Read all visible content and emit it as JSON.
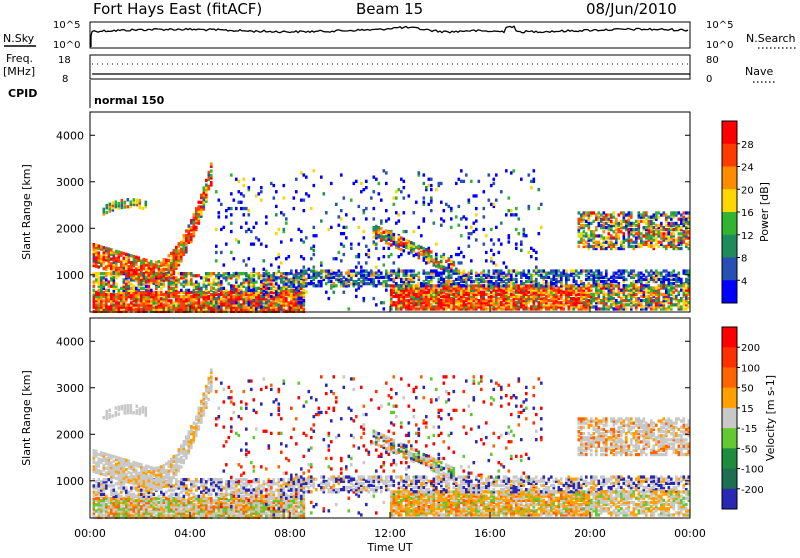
{
  "header": {
    "station": "Fort Hays East (fitACF)",
    "beam": "Beam 15",
    "date": "08/Jun/2010"
  },
  "noise_panel": {
    "left_label": "N.Sky",
    "right_label": "N.Search",
    "top_tick": "10^5",
    "bottom_tick": "10^0",
    "right_top_tick": "10^5",
    "right_bottom_tick": "10^0"
  },
  "freq_panel": {
    "left_label_1": "Freq.",
    "left_label_2": "[MHz]",
    "left_top_tick": "18",
    "left_bottom_tick": "8",
    "right_label": "Nave",
    "right_top_tick": "80",
    "right_bottom_tick": "0"
  },
  "cpid_panel": {
    "label": "CPID",
    "value": "normal 150"
  },
  "chart_data": [
    {
      "type": "heatmap",
      "name": "power",
      "ylabel": "Slant Range [km]",
      "ylim": [
        200,
        4500
      ],
      "yticks": [
        "1000",
        "2000",
        "3000",
        "4000"
      ],
      "colorbar_label": "Power [dB]",
      "colorbar_ticks": [
        "4",
        "8",
        "12",
        "16",
        "20",
        "24",
        "28"
      ],
      "colorbar_colors": [
        "#0000ff",
        "#2850b4",
        "#1e8c5a",
        "#32b432",
        "#ffd700",
        "#ff8c00",
        "#ff3c00",
        "#ff0000"
      ]
    },
    {
      "type": "heatmap",
      "name": "velocity",
      "ylabel": "Slant Range [km]",
      "ylim": [
        200,
        4500
      ],
      "yticks": [
        "1000",
        "2000",
        "3000",
        "4000"
      ],
      "colorbar_label": "Velocity [m s-1]",
      "colorbar_ticks": [
        "200",
        "100",
        "50",
        "15",
        "-15",
        "-50",
        "-100",
        "-200"
      ],
      "colorbar_colors": [
        "#2828b4",
        "#1e6e50",
        "#1e8c3c",
        "#64c832",
        "#c8c8c8",
        "#ffa000",
        "#ff6400",
        "#ff3000",
        "#ff0000"
      ]
    }
  ],
  "x_axis": {
    "xlabel": "Time UT",
    "ticks": [
      "00:00",
      "04:00",
      "08:00",
      "12:00",
      "16:00",
      "20:00",
      "00:00"
    ]
  }
}
